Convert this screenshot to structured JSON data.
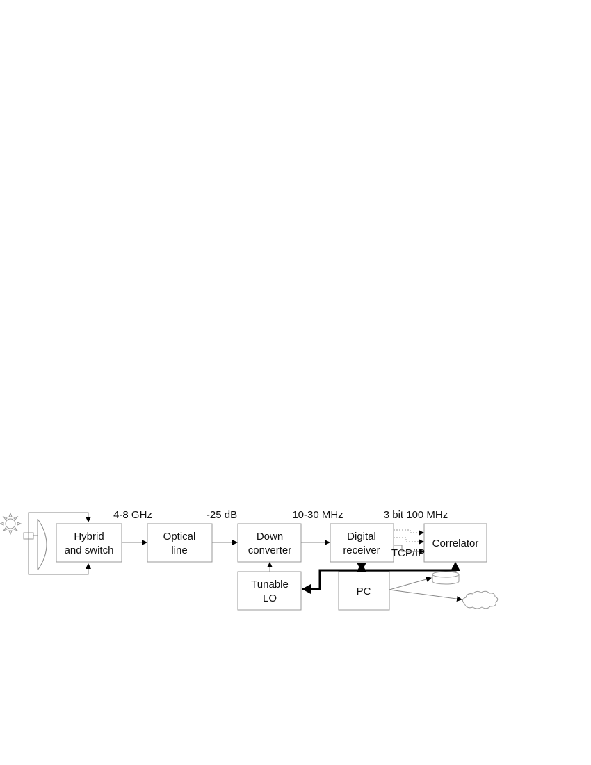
{
  "blocks": {
    "hybrid": [
      "Hybrid",
      "and switch"
    ],
    "optical": [
      "Optical",
      "line"
    ],
    "down": [
      "Down",
      "converter"
    ],
    "digital": [
      "Digital",
      "receiver"
    ],
    "correlator": "Correlator",
    "lo": [
      "Tunable",
      "LO"
    ],
    "pc": "PC"
  },
  "labels": {
    "rf": "4-8 GHz",
    "loss": "-25 dB",
    "if": "10-30 MHz",
    "digital": "3 bit 100 MHz",
    "network": "TCP/IP"
  },
  "icons": [
    "sun-icon",
    "dish-antenna-icon",
    "disk-storage-icon",
    "cloud-icon"
  ]
}
